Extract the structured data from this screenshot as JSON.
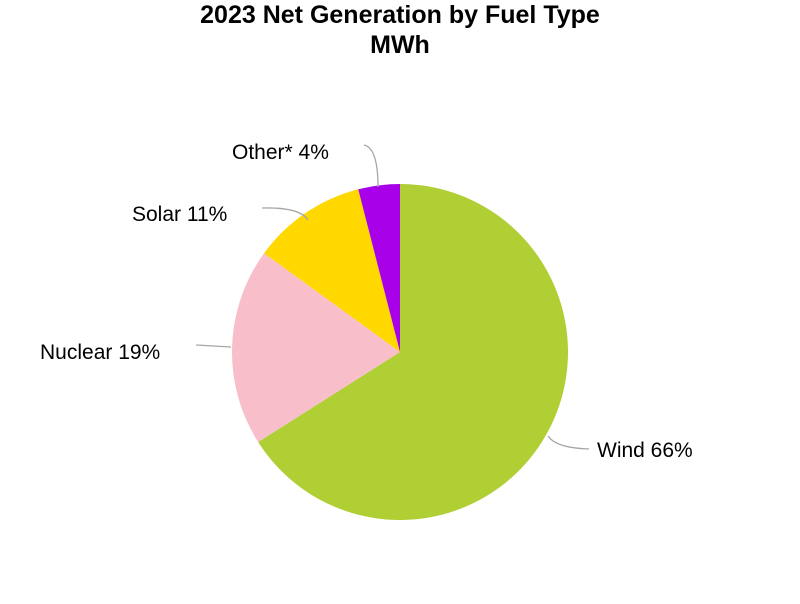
{
  "chart_data": {
    "type": "pie",
    "title": "2023 Net Generation by Fuel Type",
    "subtitle": "MWh",
    "slices": [
      {
        "label": "Wind",
        "percent": 66,
        "display": "Wind 66%",
        "color": "#afcf35"
      },
      {
        "label": "Nuclear",
        "percent": 19,
        "display": "Nuclear 19%",
        "color": "#f8bfcb"
      },
      {
        "label": "Solar",
        "percent": 11,
        "display": "Solar 11%",
        "color": "#ffd800"
      },
      {
        "label": "Other*",
        "percent": 4,
        "display": "Other* 4%",
        "color": "#a900ea"
      }
    ],
    "start_angle": "12 o'clock",
    "direction": "clockwise",
    "legend": "none",
    "data_labels": "outside with leader lines"
  }
}
